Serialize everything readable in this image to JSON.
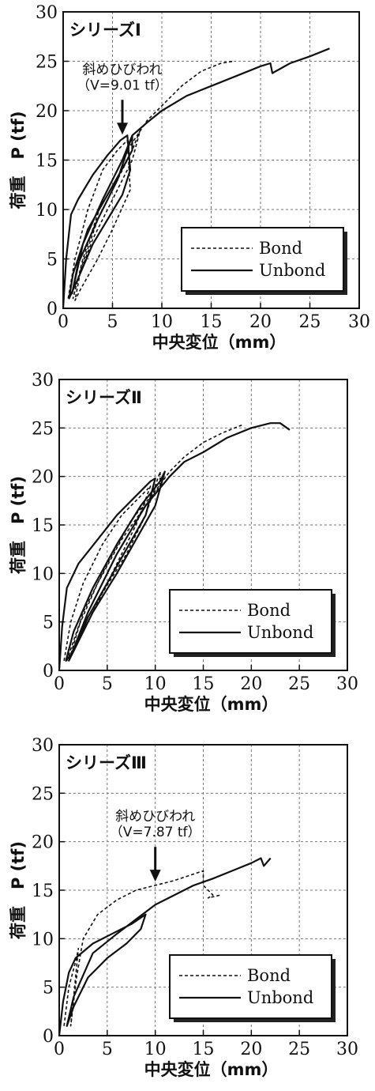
{
  "chart_data": [
    {
      "type": "line",
      "title": "シリーズⅠ",
      "xlabel": "中央変位（mm）",
      "ylabel": "荷重　P (tf)",
      "xlim": [
        0,
        30
      ],
      "ylim": [
        0,
        30
      ],
      "xticks": [
        "0",
        "5",
        "10",
        "15",
        "20",
        "25",
        "30"
      ],
      "yticks": [
        "0",
        "5",
        "10",
        "15",
        "20",
        "25",
        "30"
      ],
      "grid": "dashed",
      "legend_position": "bottom-right",
      "annotation": {
        "line1": "斜めひびわれ",
        "line2": "（V=9.01 tf）",
        "x": 6,
        "y": 17.5
      },
      "series": [
        {
          "name": "Bond",
          "style": "dashed",
          "x": [
            0.5,
            1.2,
            2.5,
            4.0,
            5.5,
            6.5,
            6.8,
            5.0,
            3.5,
            1.8,
            1.2,
            1.8,
            3.5,
            5.5,
            7.0,
            7.8,
            7.0,
            5.0,
            3.0,
            1.5,
            1.0,
            2.0,
            4.0,
            6.5,
            8.5,
            10.0,
            12.0,
            14.0,
            16.0,
            17.2
          ],
          "y": [
            1,
            5,
            10,
            14,
            16,
            17,
            12,
            8,
            5,
            2,
            0.8,
            4,
            9,
            13,
            16,
            18,
            15,
            11,
            7,
            3,
            1,
            5,
            11,
            16,
            19,
            20.5,
            22.5,
            24,
            24.8,
            25.0
          ]
        },
        {
          "name": "Unbond",
          "style": "solid",
          "x": [
            0,
            0.3,
            0.8,
            1.5,
            3.0,
            4.5,
            5.8,
            6.5,
            6.8,
            6.0,
            4.5,
            3.0,
            1.5,
            0.6,
            1.0,
            2.5,
            4.5,
            6.2,
            7.0,
            7.0,
            6.0,
            4.0,
            2.0,
            0.9,
            1.5,
            3.5,
            5.5,
            7.0,
            8.5,
            10.0,
            12.5,
            15.0,
            17.5,
            20.0,
            21.0,
            21.2,
            23.0,
            25.0,
            27.0
          ],
          "y": [
            0,
            5,
            9.5,
            11,
            13.5,
            15.5,
            17,
            17.5,
            14,
            11.5,
            9,
            6.5,
            3,
            1,
            3.5,
            8,
            11.5,
            14.5,
            16,
            17.5,
            15,
            11,
            6.5,
            1.5,
            4.5,
            9,
            13,
            17.5,
            18.8,
            20,
            21.5,
            22.5,
            23.5,
            24.5,
            24.8,
            23.8,
            24.8,
            25.5,
            26.3
          ]
        }
      ]
    },
    {
      "type": "line",
      "title": "シリーズⅡ",
      "xlabel": "中央変位（mm）",
      "ylabel": "荷重　P (tf)",
      "xlim": [
        0,
        30
      ],
      "ylim": [
        0,
        30
      ],
      "xticks": [
        "0",
        "5",
        "10",
        "15",
        "20",
        "25",
        "30"
      ],
      "yticks": [
        "0",
        "5",
        "10",
        "15",
        "20",
        "25",
        "30"
      ],
      "grid": "dashed",
      "legend_position": "bottom-right",
      "series": [
        {
          "name": "Bond",
          "style": "dashed",
          "x": [
            0.5,
            1.2,
            2.5,
            4.5,
            6.5,
            8.5,
            9.5,
            8.0,
            6.0,
            4.0,
            2.0,
            0.8,
            2.0,
            4.0,
            6.5,
            9.0,
            10.5,
            10.5,
            9.0,
            7.0,
            4.5,
            2.2,
            1.0,
            2.5,
            5.0,
            7.5,
            10.0,
            11.5,
            13.0,
            15.0,
            17.0,
            19.0
          ],
          "y": [
            1,
            5,
            9,
            13,
            16,
            18,
            19,
            15,
            11,
            7,
            3,
            1,
            4.5,
            9,
            13.5,
            17,
            19,
            20.5,
            16,
            12,
            8,
            3.5,
            1,
            6,
            11,
            15.5,
            18.5,
            20.5,
            22,
            23.5,
            24.5,
            25.3
          ]
        },
        {
          "name": "Unbond",
          "style": "solid",
          "x": [
            0,
            0.3,
            0.8,
            2.0,
            4.0,
            6.0,
            8.0,
            9.5,
            10.0,
            9.0,
            7.0,
            5.0,
            3.0,
            1.5,
            0.7,
            1.5,
            3.5,
            6.0,
            8.5,
            10.5,
            11.0,
            10.0,
            8.0,
            6.0,
            3.5,
            1.5,
            1.0,
            3.0,
            6.0,
            9.0,
            11.5,
            13.0,
            15.0,
            17.5,
            20.0,
            22.0,
            23.0,
            24.0
          ],
          "y": [
            0,
            4.5,
            8.5,
            11,
            13.5,
            16,
            18,
            19.5,
            19.8,
            16,
            12.5,
            9,
            5.5,
            2,
            1,
            4,
            8.5,
            13,
            17,
            19.5,
            20.5,
            17,
            13.5,
            10,
            6,
            2,
            1,
            6,
            12,
            17,
            20,
            21.5,
            22.5,
            24,
            25,
            25.5,
            25.5,
            24.8
          ]
        }
      ]
    },
    {
      "type": "line",
      "title": "シリーズⅢ",
      "xlabel": "中央変位（mm）",
      "ylabel": "荷重　P (tf)",
      "xlim": [
        0,
        30
      ],
      "ylim": [
        0,
        30
      ],
      "xticks": [
        "0",
        "5",
        "10",
        "15",
        "20",
        "25",
        "30"
      ],
      "yticks": [
        "0",
        "5",
        "10",
        "15",
        "20",
        "25",
        "30"
      ],
      "grid": "dashed",
      "legend_position": "bottom-right",
      "annotation": {
        "line1": "斜めひびわれ",
        "line2": "（V=7.87 tf）",
        "x": 10,
        "y": 15.8
      },
      "series": [
        {
          "name": "Bond",
          "style": "dashed",
          "x": [
            0.5,
            1.0,
            1.8,
            2.0,
            1.6,
            1.2,
            1.8,
            2.5,
            4.0,
            6.0,
            8.0,
            10.0,
            12.0,
            13.5,
            15.0,
            15.0,
            16.0,
            15.5,
            16.8
          ],
          "y": [
            1,
            5,
            8,
            9,
            5,
            1,
            6,
            10,
            12.5,
            14,
            15,
            15.5,
            16,
            16.5,
            17,
            15.5,
            14.5,
            14.2,
            14.5
          ]
        },
        {
          "name": "Unbond",
          "style": "solid",
          "x": [
            0,
            0.4,
            1.0,
            1.7,
            3.5,
            5.5,
            7.5,
            9.0,
            8.5,
            7.0,
            5.0,
            3.0,
            1.5,
            0.8,
            1.5,
            3.5,
            6.0,
            8.0,
            10.0,
            12.0,
            14.0,
            16.0,
            18.0,
            20.0,
            21.0,
            21.3,
            22.0
          ],
          "y": [
            0,
            3.5,
            6.5,
            8,
            9.5,
            10.5,
            11.5,
            12.5,
            11,
            9.5,
            8,
            6,
            3,
            1,
            4,
            8.5,
            10.5,
            12,
            13.5,
            14.5,
            15.5,
            16.2,
            17,
            17.8,
            18.3,
            17.5,
            18.3
          ]
        }
      ]
    }
  ]
}
